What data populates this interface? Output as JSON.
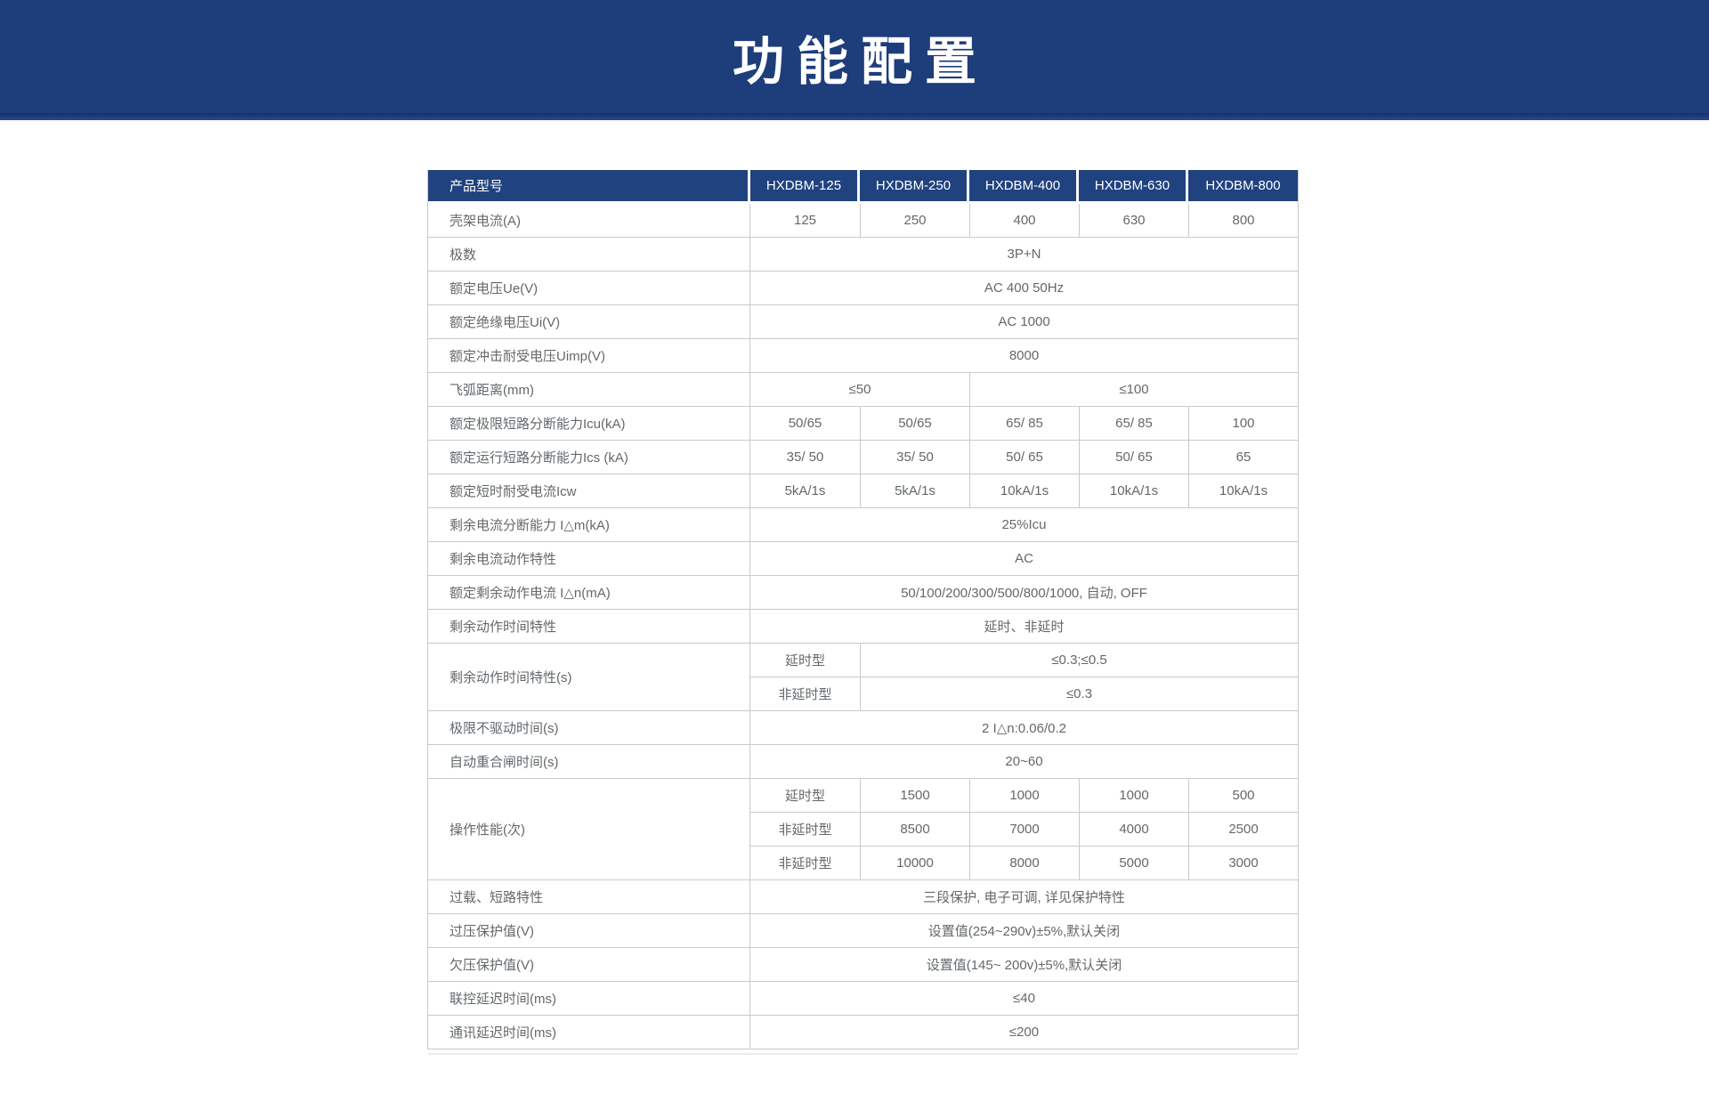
{
  "banner": {
    "title": "功能配置"
  },
  "colors": {
    "banner": "#1e3d7b",
    "banner_strip": "#16306a",
    "table_header": "#20427f",
    "border": "#c9cacc",
    "text": "#63686c"
  },
  "table": {
    "head": {
      "label": "产品型号",
      "models": [
        "HXDBM-125",
        "HXDBM-250",
        "HXDBM-400",
        "HXDBM-630",
        "HXDBM-800"
      ]
    },
    "rows": [
      {
        "label": "壳架电流(A)",
        "cells": [
          "125",
          "250",
          "400",
          "630",
          "800"
        ]
      },
      {
        "label": "极数",
        "value": "3P+N"
      },
      {
        "label": "额定电压Ue(V)",
        "value": "AC 400 50Hz"
      },
      {
        "label": "额定绝缘电压Ui(V)",
        "value": "AC 1000"
      },
      {
        "label": "额定冲击耐受电压Uimp(V)",
        "value": "8000"
      },
      {
        "label": "飞弧距离(mm)",
        "left": "≤50",
        "right": "≤100"
      },
      {
        "label": "额定极限短路分断能力Icu(kA)",
        "cells": [
          "50/65",
          "50/65",
          "65/ 85",
          "65/ 85",
          "100"
        ]
      },
      {
        "label": "额定运行短路分断能力Ics (kA)",
        "cells": [
          "35/ 50",
          "35/ 50",
          "50/ 65",
          "50/ 65",
          "65"
        ]
      },
      {
        "label": "额定短时耐受电流Icw",
        "cells": [
          "5kA/1s",
          "5kA/1s",
          "10kA/1s",
          "10kA/1s",
          "10kA/1s"
        ]
      },
      {
        "label": "剩余电流分断能力 I△m(kA)",
        "value": "25%Icu"
      },
      {
        "label": "剩余电流动作特性",
        "value": "AC"
      },
      {
        "label": "额定剩余动作电流 I△n(mA)",
        "value": "50/100/200/300/500/800/1000, 自动, OFF"
      },
      {
        "label": "剩余动作时间特性",
        "value": "延时、非延时"
      },
      {
        "label": "剩余动作时间特性(s)",
        "subs": [
          {
            "type": "延时型",
            "value": "≤0.3;≤0.5"
          },
          {
            "type": "非延时型",
            "value": "≤0.3"
          }
        ]
      },
      {
        "label": "极限不驱动时间(s)",
        "value": "2 I△n:0.06/0.2"
      },
      {
        "label": "自动重合闸时间(s)",
        "value": "20~60"
      },
      {
        "label": "操作性能(次)",
        "subs": [
          {
            "type": "延时型",
            "cells": [
              "1500",
              "1000",
              "1000",
              "500"
            ]
          },
          {
            "type": "非延时型",
            "cells": [
              "8500",
              "7000",
              "4000",
              "2500"
            ]
          },
          {
            "type": "非延时型",
            "cells": [
              "10000",
              "8000",
              "5000",
              "3000"
            ]
          }
        ]
      },
      {
        "label": "过载、短路特性",
        "value": "三段保护, 电子可调, 详见保护特性"
      },
      {
        "label": "过压保护值(V)",
        "value": "设置值(254~290v)±5%,默认关闭"
      },
      {
        "label": "欠压保护值(V)",
        "value": "设置值(145~ 200v)±5%,默认关闭"
      },
      {
        "label": "联控延迟时间(ms)",
        "value": "≤40"
      },
      {
        "label": "通讯延迟时间(ms)",
        "value": "≤200"
      }
    ]
  }
}
